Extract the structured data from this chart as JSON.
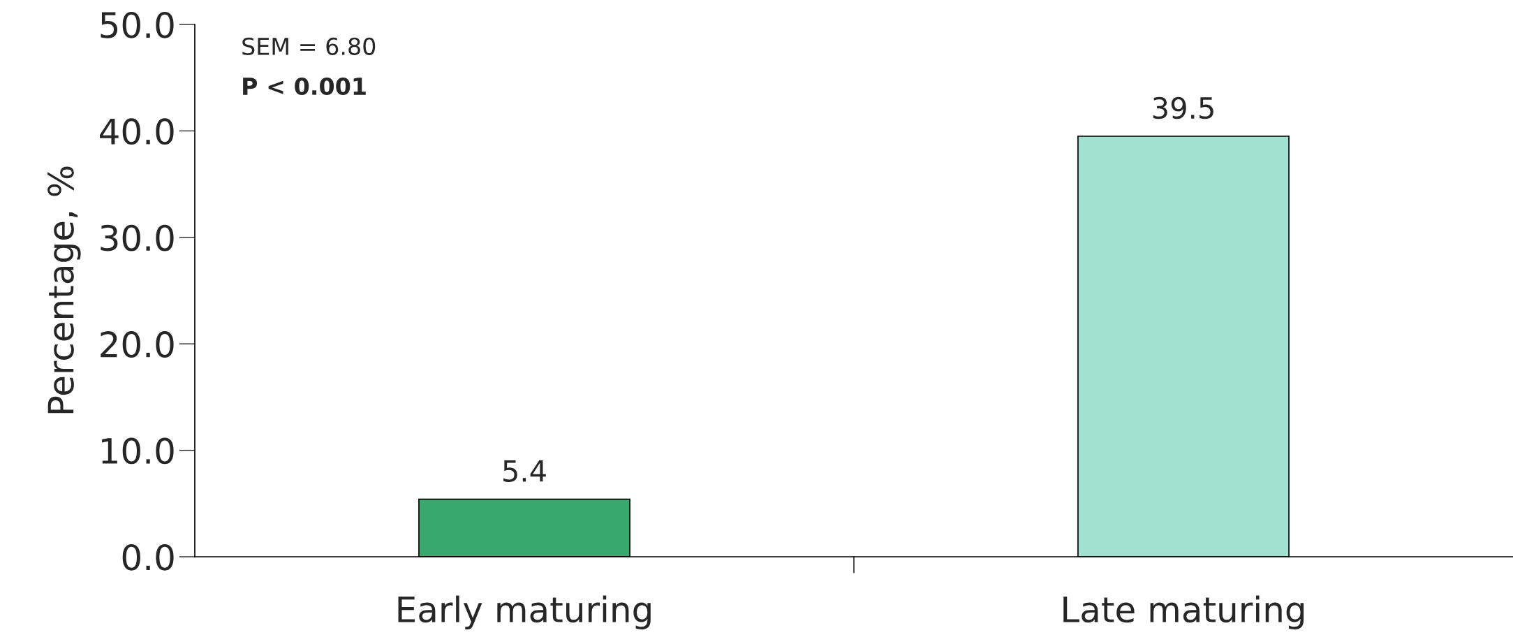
{
  "chart_data": {
    "type": "bar",
    "categories": [
      "Early maturing",
      "Late maturing"
    ],
    "values": [
      5.4,
      39.5
    ],
    "colors": [
      "#38a86f",
      "#a2e0d0"
    ],
    "ylabel": "Percentage, %",
    "ylim": [
      0,
      50
    ],
    "yticks": [
      {
        "value": 0,
        "label": "0.0"
      },
      {
        "value": 10,
        "label": "10.0"
      },
      {
        "value": 20,
        "label": "20.0"
      },
      {
        "value": 30,
        "label": "30.0"
      },
      {
        "value": 40,
        "label": "40.0"
      },
      {
        "value": 50,
        "label": "50.0"
      }
    ],
    "annotations": [
      "SEM = 6.80",
      "P < 0.001"
    ],
    "data_labels": true,
    "grid": false,
    "legend": false
  }
}
